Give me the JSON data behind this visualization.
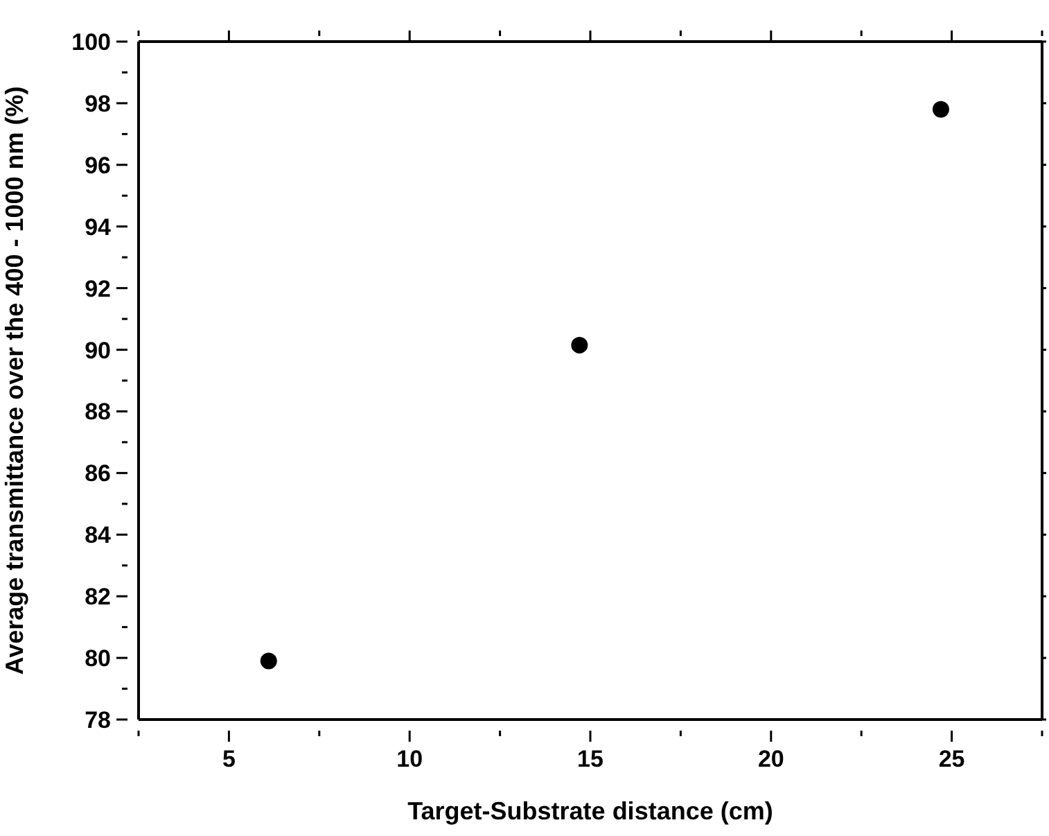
{
  "chart_data": {
    "type": "scatter",
    "xlabel": "Target-Substrate distance (cm)",
    "ylabel": "Average transmittance over the 400 - 1000 nm (%)",
    "x": [
      6.1,
      14.7,
      24.7
    ],
    "series": [
      {
        "color": "#000000",
        "values": [
          79.9,
          90.15,
          97.8
        ]
      }
    ],
    "xlim": [
      2.5,
      27.5
    ],
    "xticks": [
      {
        "value": 2.5,
        "label": null
      },
      5,
      {
        "value": 7.5,
        "label": null
      },
      10,
      {
        "value": 12.5,
        "label": null
      },
      15,
      {
        "value": 17.5,
        "label": null
      },
      20,
      {
        "value": 22.5,
        "label": null
      },
      25,
      {
        "value": 27.5,
        "label": null
      }
    ],
    "ylim": [
      78,
      100
    ],
    "yticks": [
      78,
      {
        "value": 79,
        "label": null
      },
      80,
      {
        "value": 81,
        "label": null
      },
      82,
      {
        "value": 83,
        "label": null
      },
      84,
      {
        "value": 85,
        "label": null
      },
      86,
      {
        "value": 87,
        "label": null
      },
      88,
      {
        "value": 89,
        "label": null
      },
      90,
      {
        "value": 91,
        "label": null
      },
      92,
      {
        "value": 93,
        "label": null
      },
      94,
      {
        "value": 95,
        "label": null
      },
      96,
      {
        "value": 97,
        "label": null
      },
      98,
      {
        "value": 99,
        "label": null
      },
      100
    ],
    "marker": "circle"
  }
}
